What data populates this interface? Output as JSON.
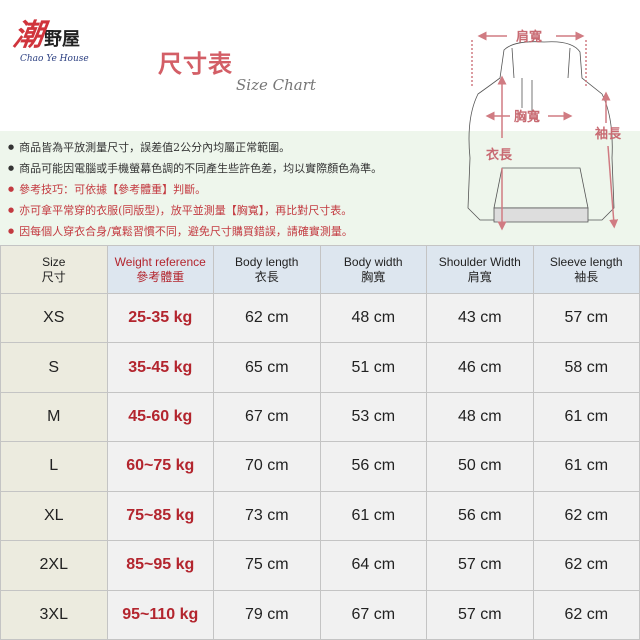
{
  "brand": {
    "logo_big": "潮",
    "logo_rest": "野屋",
    "logo_en": "Chao Ye House"
  },
  "title": "尺寸表",
  "subtitle": "Size Chart",
  "notes": [
    {
      "text": "商品皆為平放測量尺寸，誤差值2公分內均屬正常範圍。",
      "color": "#333333"
    },
    {
      "text": "商品可能因電腦或手機螢幕色調的不同產生些許色差，均以實際顏色為準。",
      "color": "#333333"
    },
    {
      "text": "參考技巧：可依據【參考體重】判斷。",
      "color": "#c33a40"
    },
    {
      "text": "亦可拿平常穿的衣服(同版型)，放平並測量【胸寬】，再比對尺寸表。",
      "color": "#c33a40"
    },
    {
      "text": "因每個人穿衣合身/寬鬆習慣不同，避免尺寸購買錯誤，請確實測量。",
      "color": "#c33a40"
    }
  ],
  "diagram": {
    "shoulder": "肩寬",
    "chest": "胸寬",
    "body_length": "衣長",
    "sleeve": "袖長"
  },
  "table": {
    "headers": [
      {
        "en": "Size",
        "zh": "尺寸"
      },
      {
        "en": "Weight reference",
        "zh": "參考體重"
      },
      {
        "en": "Body length",
        "zh": "衣長"
      },
      {
        "en": "Body width",
        "zh": "胸寬"
      },
      {
        "en": "Shoulder Width",
        "zh": "肩寬"
      },
      {
        "en": "Sleeve length",
        "zh": "袖長"
      }
    ],
    "rows": [
      [
        "XS",
        "25-35 kg",
        "62 cm",
        "48 cm",
        "43 cm",
        "57 cm"
      ],
      [
        "S",
        "35-45 kg",
        "65 cm",
        "51 cm",
        "46 cm",
        "58 cm"
      ],
      [
        "M",
        "45-60 kg",
        "67 cm",
        "53 cm",
        "48 cm",
        "61 cm"
      ],
      [
        "L",
        "60~75 kg",
        "70 cm",
        "56 cm",
        "50 cm",
        "61 cm"
      ],
      [
        "XL",
        "75~85 kg",
        "73 cm",
        "61 cm",
        "56 cm",
        "62 cm"
      ],
      [
        "2XL",
        "85~95 kg",
        "75 cm",
        "64 cm",
        "57 cm",
        "62 cm"
      ],
      [
        "3XL",
        "95~110 kg",
        "79 cm",
        "67 cm",
        "57 cm",
        "62 cm"
      ]
    ]
  },
  "colors": {
    "accent": "#b3252e",
    "header_bg": "#dde6ef",
    "size_col_bg": "#ecebdf",
    "band_bg": "#eef6ec"
  }
}
